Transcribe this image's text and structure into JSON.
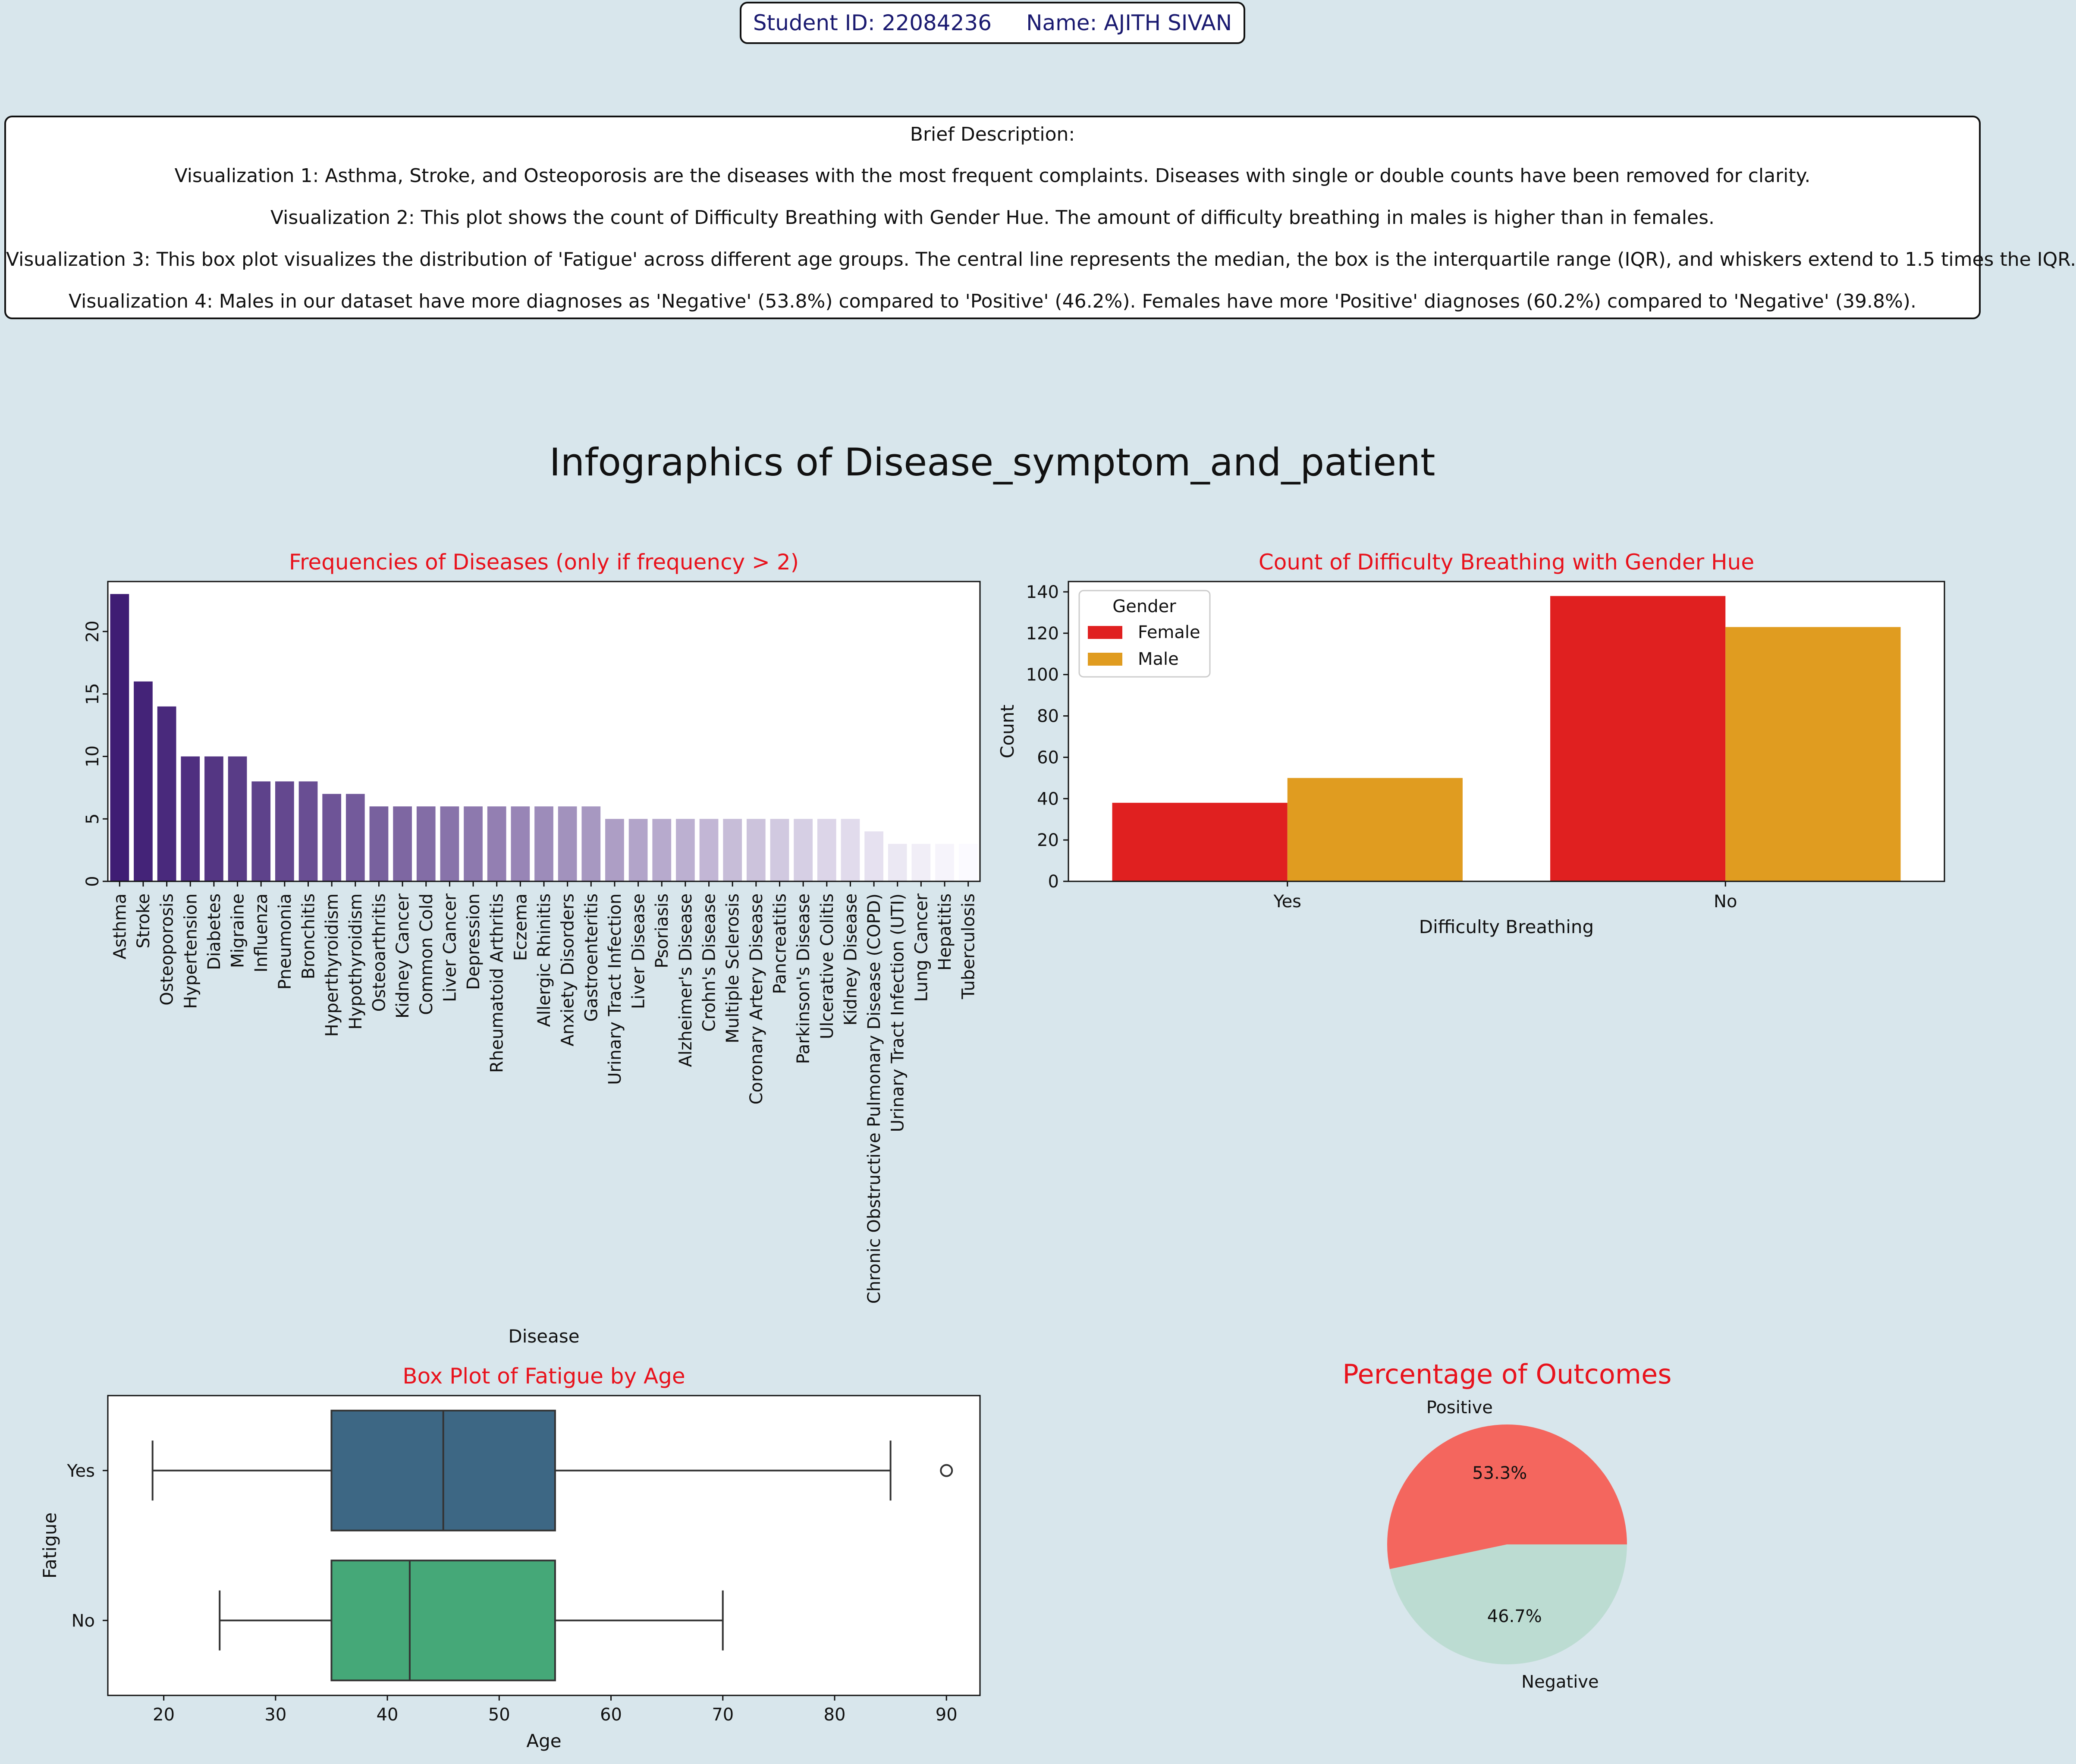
{
  "header": {
    "student_id": "Student ID: 22084236",
    "name": "Name: AJITH SIVAN"
  },
  "description": {
    "heading": "Brief Description:",
    "lines": [
      "Visualization 1: Asthma, Stroke, and Osteoporosis are the diseases with the most frequent complaints. Diseases with single or double counts have been removed for clarity.",
      "Visualization 2: This plot shows the count of Difficulty Breathing with Gender Hue. The amount of difficulty breathing in males is higher than in females.",
      "Visualization 3: This box plot visualizes the distribution of 'Fatigue' across different age groups. The central line represents the median, the box is the interquartile range (IQR), and whiskers extend to 1.5 times the IQR.",
      "Visualization 4: Males in our dataset have more diagnoses as 'Negative' (53.8%) compared to 'Positive' (46.2%). Females have more 'Positive' diagnoses (60.2%) compared to 'Negative' (39.8%)."
    ]
  },
  "main_title": "Infographics of Disease_symptom_and_patient",
  "chart_data": [
    {
      "type": "bar",
      "title": "Frequencies of Diseases (only if frequency > 2)",
      "xlabel": "Disease",
      "ylabel": "",
      "ylim": [
        0,
        24
      ],
      "yticks": [
        0,
        5,
        10,
        15,
        20
      ],
      "grid": false,
      "palette": "purples, dark to light",
      "categories": [
        "Asthma",
        "Stroke",
        "Osteoporosis",
        "Hypertension",
        "Diabetes",
        "Migraine",
        "Influenza",
        "Pneumonia",
        "Bronchitis",
        "Hyperthyroidism",
        "Hypothyroidism",
        "Osteoarthritis",
        "Kidney Cancer",
        "Common Cold",
        "Liver Cancer",
        "Depression",
        "Rheumatoid Arthritis",
        "Eczema",
        "Allergic Rhinitis",
        "Anxiety Disorders",
        "Gastroenteritis",
        "Urinary Tract Infection",
        "Liver Disease",
        "Psoriasis",
        "Alzheimer's Disease",
        "Crohn's Disease",
        "Multiple Sclerosis",
        "Coronary Artery Disease",
        "Pancreatitis",
        "Parkinson's Disease",
        "Ulcerative Colitis",
        "Kidney Disease",
        "Chronic Obstructive Pulmonary Disease (COPD)",
        "Urinary Tract Infection (UTI)",
        "Lung Cancer",
        "Hepatitis",
        "Tuberculosis"
      ],
      "values": [
        23,
        16,
        14,
        10,
        10,
        10,
        8,
        8,
        8,
        7,
        7,
        6,
        6,
        6,
        6,
        6,
        6,
        6,
        6,
        6,
        6,
        5,
        5,
        5,
        5,
        5,
        5,
        5,
        5,
        5,
        5,
        5,
        4,
        3,
        3,
        3,
        3
      ]
    },
    {
      "type": "bar",
      "title": "Count of Difficulty Breathing with Gender Hue",
      "xlabel": "Difficulty Breathing",
      "ylabel": "Count",
      "ylim": [
        0,
        145
      ],
      "yticks": [
        0,
        20,
        40,
        60,
        80,
        100,
        120,
        140
      ],
      "grid": false,
      "legend": {
        "title": "Gender",
        "placement": "top-left"
      },
      "categories": [
        "Yes",
        "No"
      ],
      "series": [
        {
          "name": "Female",
          "color": "#e02020",
          "values": [
            38,
            138
          ]
        },
        {
          "name": "Male",
          "color": "#e09c20",
          "values": [
            50,
            123
          ]
        }
      ]
    },
    {
      "type": "box",
      "title": "Box Plot of Fatigue by Age",
      "xlabel": "Age",
      "ylabel": "Fatigue",
      "xlim": [
        15,
        93
      ],
      "xticks": [
        20,
        30,
        40,
        50,
        60,
        70,
        80,
        90
      ],
      "grid": false,
      "groups": [
        {
          "name": "Yes",
          "color": "#3d6784",
          "whisker_low": 19,
          "q1": 35,
          "median": 45,
          "q3": 55,
          "whisker_high": 85,
          "outliers": [
            90
          ]
        },
        {
          "name": "No",
          "color": "#45a878",
          "whisker_low": 25,
          "q1": 35,
          "median": 42,
          "q3": 55,
          "whisker_high": 70,
          "outliers": []
        }
      ]
    },
    {
      "type": "pie",
      "title": "Percentage of Outcomes",
      "slices": [
        {
          "label": "Positive",
          "value": 53.3,
          "display": "53.3%",
          "color": "#f4665e"
        },
        {
          "label": "Negative",
          "value": 46.7,
          "display": "46.7%",
          "color": "#bcdcd2"
        }
      ]
    }
  ]
}
